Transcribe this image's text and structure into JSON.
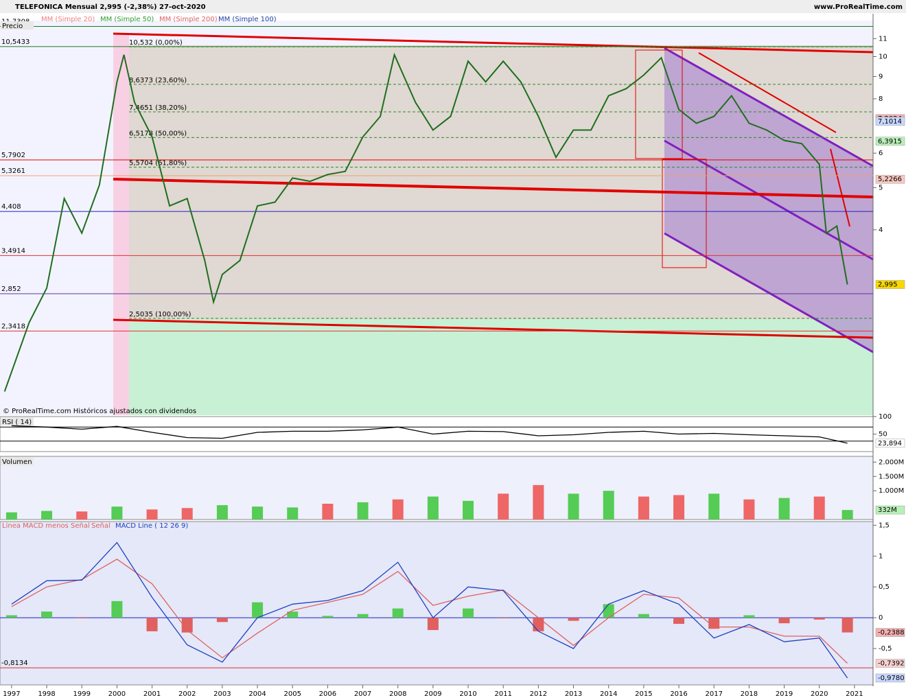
{
  "header": {
    "title": "TELEFONICA   Mensual   2,995 (-2,38%)   27-oct-2020",
    "site": "www.ProRealTime.com",
    "footnote": "© ProRealTime.com  Históricos ajustados con dividendos"
  },
  "chart_data": [
    {
      "type": "line",
      "title": "Precio",
      "log": true,
      "xlim": [
        1996.67,
        2021.53
      ],
      "ylim": [
        1.5,
        12.1
      ],
      "yticks": [
        4,
        5,
        6,
        8,
        9,
        10,
        11
      ],
      "indicators": [
        {
          "name": "MM (Simple 20)",
          "color": "#f08080"
        },
        {
          "name": "MM (Simple 50)",
          "color": "#2ca02c"
        },
        {
          "name": "MM (Simple 200)",
          "color": "#e06060"
        },
        {
          "name": "MM (Simple 100)",
          "color": "#1f3fa0"
        }
      ],
      "x": [
        1996.8,
        1997.5,
        1998.0,
        1998.5,
        1999.0,
        1999.5,
        2000.0,
        2000.2,
        2000.5,
        2001.0,
        2001.5,
        2002.0,
        2002.5,
        2002.75,
        2003.0,
        2003.5,
        2004.0,
        2004.5,
        2005.0,
        2005.5,
        2006.0,
        2006.5,
        2007.0,
        2007.5,
        2007.9,
        2008.5,
        2009.0,
        2009.5,
        2010.0,
        2010.5,
        2011.0,
        2011.5,
        2012.0,
        2012.5,
        2013.0,
        2013.5,
        2014.0,
        2014.5,
        2015.0,
        2015.5,
        2016.0,
        2016.5,
        2017.0,
        2017.5,
        2018.0,
        2018.5,
        2019.0,
        2019.5,
        2020.0,
        2020.2,
        2020.5,
        2020.8
      ],
      "series": [
        {
          "name": "Precio",
          "color": "#1e6e1e",
          "values": [
            1.7,
            2.45,
            2.94,
            4.72,
            3.93,
            5.07,
            8.75,
            10.1,
            7.85,
            6.54,
            4.54,
            4.72,
            3.4,
            2.73,
            3.16,
            3.4,
            4.54,
            4.63,
            5.26,
            5.17,
            5.36,
            5.45,
            6.54,
            7.29,
            10.1,
            7.85,
            6.78,
            7.29,
            9.76,
            8.75,
            9.76,
            8.75,
            7.29,
            5.87,
            6.78,
            6.78,
            8.13,
            8.44,
            9.07,
            9.94,
            7.56,
            7.03,
            7.29,
            8.13,
            7.03,
            6.78,
            6.42,
            6.31,
            5.66,
            3.93,
            4.08,
            2.995
          ]
        }
      ],
      "levels": [
        {
          "value": 11.7308,
          "label": "11,7308",
          "color": "#1a7a1a"
        },
        {
          "value": 10.5433,
          "label": "10,5433",
          "color": "#1a7a1a"
        },
        {
          "value": 5.7902,
          "label": "5,7902",
          "color": "#e00000"
        },
        {
          "value": 5.3261,
          "label": "5,3261",
          "color": "#f0a070"
        },
        {
          "value": 4.408,
          "label": "4,408",
          "color": "#2020c0"
        },
        {
          "value": 3.4914,
          "label": "3,4914",
          "color": "#e03030"
        },
        {
          "value": 2.852,
          "label": "2,852",
          "color": "#6030a0"
        },
        {
          "value": 2.3418,
          "label": "2,3418",
          "color": "#e03030"
        }
      ],
      "fib_levels": [
        {
          "value": 10.532,
          "label": "10,532 (0,00%)"
        },
        {
          "value": 8.6373,
          "label": "8,6373 (23,60%)"
        },
        {
          "value": 7.4651,
          "label": "7,4651 (38,20%)"
        },
        {
          "value": 6.5178,
          "label": "6,5178 (50,00%)"
        },
        {
          "value": 5.5704,
          "label": "5,5704 (61,80%)"
        },
        {
          "value": 2.5035,
          "label": "2,5035 (100,00%)"
        }
      ],
      "right_labels": [
        {
          "value": 7.2024,
          "label": "7,2024",
          "color": "#f4b0b0"
        },
        {
          "value": 7.1014,
          "label": "7,1014",
          "color": "#c8d8ff"
        },
        {
          "value": 6.3915,
          "label": "6,3915",
          "color": "#b8f0b8"
        },
        {
          "value": 5.2266,
          "label": "5,2266",
          "color": "#f8c8c0"
        },
        {
          "value": 2.995,
          "label": "2,995",
          "color": "#f8d800"
        }
      ]
    },
    {
      "type": "line",
      "title": "RSI ( 14)",
      "xlim": [
        1996.67,
        2021.53
      ],
      "ylim": [
        0,
        100
      ],
      "yticks": [
        50,
        100
      ],
      "levels": [
        {
          "value": 70,
          "color": "#000"
        },
        {
          "value": 30,
          "color": "#000"
        }
      ],
      "x": [
        1997,
        1998,
        1999,
        2000,
        2001,
        2002,
        2003,
        2004,
        2005,
        2006,
        2007,
        2008,
        2009,
        2010,
        2011,
        2012,
        2013,
        2014,
        2015,
        2016,
        2017,
        2018,
        2019,
        2020,
        2020.8
      ],
      "series": [
        {
          "name": "RSI",
          "color": "#000",
          "values": [
            74,
            70,
            64,
            72,
            55,
            40,
            38,
            55,
            58,
            58,
            62,
            70,
            50,
            58,
            57,
            45,
            48,
            55,
            58,
            50,
            52,
            48,
            45,
            42,
            23.894
          ]
        }
      ],
      "right_labels": [
        {
          "value": 23.894,
          "label": "23,894",
          "color": "#fff"
        }
      ]
    },
    {
      "type": "bar",
      "title": "Volumen",
      "xlim": [
        1996.67,
        2021.53
      ],
      "ylim": [
        0,
        2200
      ],
      "yticks": [
        {
          "value": 1000,
          "label": "1.000M"
        },
        {
          "value": 1500,
          "label": "1.500M"
        },
        {
          "value": 2000,
          "label": "2.000M"
        }
      ],
      "x": [
        1997,
        1998,
        1999,
        2000,
        2001,
        2002,
        2003,
        2004,
        2005,
        2006,
        2007,
        2008,
        2009,
        2010,
        2011,
        2012,
        2013,
        2014,
        2015,
        2016,
        2017,
        2018,
        2019,
        2020,
        2020.8
      ],
      "values": [
        250,
        300,
        280,
        450,
        350,
        400,
        500,
        450,
        420,
        550,
        600,
        700,
        800,
        650,
        900,
        1200,
        900,
        1000,
        800,
        850,
        900,
        700,
        750,
        800,
        332
      ],
      "colors": [
        "#5c5",
        "#5c5",
        "#e66",
        "#5c5",
        "#e66",
        "#e66",
        "#5c5",
        "#5c5",
        "#5c5",
        "#e66",
        "#5c5",
        "#e66",
        "#5c5",
        "#5c5",
        "#e66",
        "#e66",
        "#5c5",
        "#5c5",
        "#e66",
        "#e66",
        "#5c5",
        "#e66",
        "#5c5",
        "#e66",
        "#5c5"
      ],
      "right_labels": [
        {
          "value": 332,
          "label": "332M",
          "color": "#b8f0b8"
        }
      ]
    },
    {
      "type": "line",
      "xlim": [
        1996.67,
        2021.53
      ],
      "ylim": [
        -1.09,
        1.56
      ],
      "yticks": [
        {
          "value": -0.5,
          "label": "-0,5"
        },
        0,
        {
          "value": 0.5,
          "label": "0,5"
        },
        1,
        {
          "value": 1.5,
          "label": "1,5"
        }
      ],
      "xticks": [
        1997,
        1998,
        1999,
        2000,
        2001,
        2002,
        2003,
        2004,
        2005,
        2006,
        2007,
        2008,
        2009,
        2010,
        2011,
        2012,
        2013,
        2014,
        2015,
        2016,
        2017,
        2018,
        2019,
        2020,
        2021
      ],
      "x": [
        1997,
        1998,
        1999,
        2000,
        2001,
        2002,
        2003,
        2004,
        2005,
        2006,
        2007,
        2008,
        2009,
        2010,
        2011,
        2012,
        2013,
        2014,
        2015,
        2016,
        2017,
        2018,
        2019,
        2020,
        2020.8
      ],
      "series": [
        {
          "name": "Linea MACD menos Señal",
          "kind": "bar",
          "color": "#e06060",
          "values": [
            0.04,
            0.1,
            -0.01,
            0.27,
            -0.22,
            -0.24,
            -0.07,
            0.25,
            0.1,
            0.03,
            0.06,
            0.15,
            -0.2,
            0.15,
            -0.01,
            -0.22,
            -0.05,
            0.22,
            0.06,
            -0.1,
            -0.18,
            0.04,
            -0.09,
            -0.03,
            -0.2388
          ]
        },
        {
          "name": "Señal",
          "color": "#e06060",
          "values": [
            0.18,
            0.5,
            0.62,
            0.95,
            0.55,
            -0.2,
            -0.65,
            -0.25,
            0.12,
            0.25,
            0.38,
            0.75,
            0.2,
            0.35,
            0.45,
            0.0,
            -0.45,
            0.0,
            0.38,
            0.32,
            -0.15,
            -0.15,
            -0.3,
            -0.3,
            -0.7392
          ]
        },
        {
          "name": "MACD Line ( 12 26 9)",
          "color": "#2040c0",
          "values": [
            0.22,
            0.6,
            0.61,
            1.22,
            0.33,
            -0.44,
            -0.72,
            0,
            0.22,
            0.28,
            0.44,
            0.9,
            0,
            0.5,
            0.44,
            -0.22,
            -0.5,
            0.22,
            0.44,
            0.22,
            -0.33,
            -0.11,
            -0.39,
            -0.33,
            -0.978
          ]
        }
      ],
      "levels": [
        {
          "value": -0.8134,
          "label": "-0,8134",
          "color": "#e03030"
        },
        {
          "value": 0,
          "color": "#2020c0"
        }
      ],
      "right_labels": [
        {
          "value": -0.2388,
          "label": "-0,2388",
          "color": "#f4b0b0"
        },
        {
          "value": -0.7392,
          "label": "-0,7392",
          "color": "#f8d0d0"
        },
        {
          "value": -0.978,
          "label": "-0,9780",
          "color": "#c8d8ff"
        }
      ]
    }
  ]
}
